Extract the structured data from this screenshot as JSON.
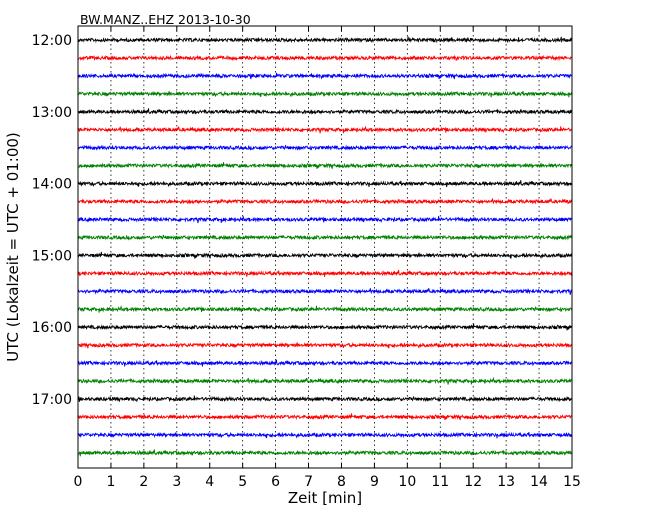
{
  "chart_data": {
    "type": "line",
    "title": "BW.MANZ..EHZ 2013-10-30",
    "xlabel": "Zeit  [min]",
    "ylabel": "UTC (Lokalzeit = UTC + 01:00)",
    "xlim": [
      0,
      15
    ],
    "x_ticks": [
      "0",
      "1",
      "2",
      "3",
      "4",
      "5",
      "6",
      "7",
      "8",
      "9",
      "10",
      "11",
      "12",
      "13",
      "14",
      "15"
    ],
    "y_tick_labels": [
      "12:00",
      "13:00",
      "14:00",
      "15:00",
      "16:00",
      "17:00"
    ],
    "grid": "vertical dotted at each minute",
    "line_colors": [
      "#000000",
      "#ff0000",
      "#0000ff",
      "#008000"
    ],
    "series": [
      {
        "start": "12:00",
        "color": "#000000"
      },
      {
        "start": "12:15",
        "color": "#ff0000"
      },
      {
        "start": "12:30",
        "color": "#0000ff"
      },
      {
        "start": "12:45",
        "color": "#008000"
      },
      {
        "start": "13:00",
        "color": "#000000"
      },
      {
        "start": "13:15",
        "color": "#ff0000"
      },
      {
        "start": "13:30",
        "color": "#0000ff"
      },
      {
        "start": "13:45",
        "color": "#008000"
      },
      {
        "start": "14:00",
        "color": "#000000"
      },
      {
        "start": "14:15",
        "color": "#ff0000"
      },
      {
        "start": "14:30",
        "color": "#0000ff"
      },
      {
        "start": "14:45",
        "color": "#008000"
      },
      {
        "start": "15:00",
        "color": "#000000"
      },
      {
        "start": "15:15",
        "color": "#ff0000"
      },
      {
        "start": "15:30",
        "color": "#0000ff"
      },
      {
        "start": "15:45",
        "color": "#008000"
      },
      {
        "start": "16:00",
        "color": "#000000"
      },
      {
        "start": "16:15",
        "color": "#ff0000"
      },
      {
        "start": "16:30",
        "color": "#0000ff"
      },
      {
        "start": "16:45",
        "color": "#008000"
      },
      {
        "start": "17:00",
        "color": "#000000"
      },
      {
        "start": "17:15",
        "color": "#ff0000"
      },
      {
        "start": "17:30",
        "color": "#0000ff"
      },
      {
        "start": "17:45",
        "color": "#008000"
      }
    ]
  }
}
